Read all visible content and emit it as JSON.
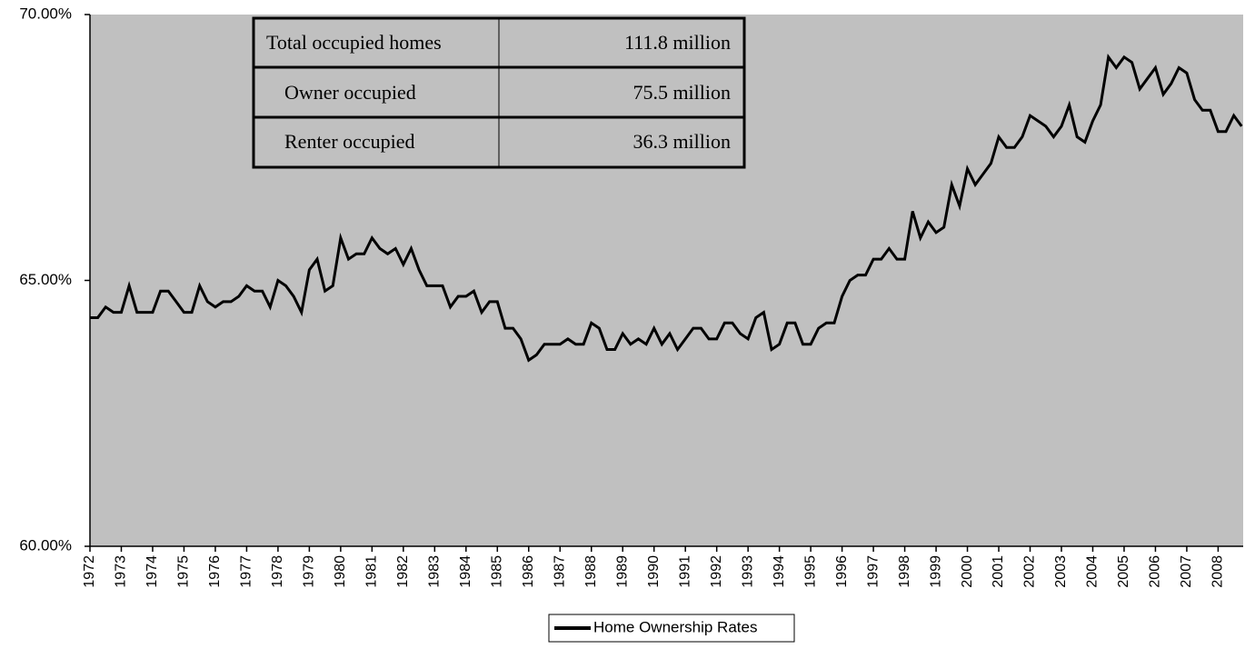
{
  "chart_data": {
    "type": "line",
    "x": [
      1972,
      1972.25,
      1972.5,
      1972.75,
      1973,
      1973.25,
      1973.5,
      1973.75,
      1974,
      1974.25,
      1974.5,
      1974.75,
      1975,
      1975.25,
      1975.5,
      1975.75,
      1976,
      1976.25,
      1976.5,
      1976.75,
      1977,
      1977.25,
      1977.5,
      1977.75,
      1978,
      1978.25,
      1978.5,
      1978.75,
      1979,
      1979.25,
      1979.5,
      1979.75,
      1980,
      1980.25,
      1980.5,
      1980.75,
      1981,
      1981.25,
      1981.5,
      1981.75,
      1982,
      1982.25,
      1982.5,
      1982.75,
      1983,
      1983.25,
      1983.5,
      1983.75,
      1984,
      1984.25,
      1984.5,
      1984.75,
      1985,
      1985.25,
      1985.5,
      1985.75,
      1986,
      1986.25,
      1986.5,
      1986.75,
      1987,
      1987.25,
      1987.5,
      1987.75,
      1988,
      1988.25,
      1988.5,
      1988.75,
      1989,
      1989.25,
      1989.5,
      1989.75,
      1990,
      1990.25,
      1990.5,
      1990.75,
      1991,
      1991.25,
      1991.5,
      1991.75,
      1992,
      1992.25,
      1992.5,
      1992.75,
      1993,
      1993.25,
      1993.5,
      1993.75,
      1994,
      1994.25,
      1994.5,
      1994.75,
      1995,
      1995.25,
      1995.5,
      1995.75,
      1996,
      1996.25,
      1996.5,
      1996.75,
      1997,
      1997.25,
      1997.5,
      1997.75,
      1998,
      1998.25,
      1998.5,
      1998.75,
      1999,
      1999.25,
      1999.5,
      1999.75,
      2000,
      2000.25,
      2000.5,
      2000.75,
      2001,
      2001.25,
      2001.5,
      2001.75,
      2002,
      2002.25,
      2002.5,
      2002.75,
      2003,
      2003.25,
      2003.5,
      2003.75,
      2004,
      2004.25,
      2004.5,
      2004.75,
      2005,
      2005.25,
      2005.5,
      2005.75,
      2006,
      2006.25,
      2006.5,
      2006.75,
      2007,
      2007.25,
      2007.5,
      2007.75,
      2008,
      2008.25,
      2008.5,
      2008.75
    ],
    "series": [
      {
        "name": "Home Ownership Rates",
        "color": "#000000",
        "values": [
          64.3,
          64.3,
          64.5,
          64.4,
          64.4,
          64.9,
          64.4,
          64.4,
          64.4,
          64.8,
          64.8,
          64.6,
          64.4,
          64.4,
          64.9,
          64.6,
          64.5,
          64.6,
          64.6,
          64.7,
          64.9,
          64.8,
          64.8,
          64.5,
          65.0,
          64.9,
          64.7,
          64.4,
          65.2,
          65.4,
          64.8,
          64.9,
          65.8,
          65.4,
          65.5,
          65.5,
          65.8,
          65.6,
          65.5,
          65.6,
          65.3,
          65.6,
          65.2,
          64.9,
          64.9,
          64.9,
          64.5,
          64.7,
          64.7,
          64.8,
          64.4,
          64.6,
          64.6,
          64.1,
          64.1,
          63.9,
          63.5,
          63.6,
          63.8,
          63.8,
          63.8,
          63.9,
          63.8,
          63.8,
          64.2,
          64.1,
          63.7,
          63.7,
          64.0,
          63.8,
          63.9,
          63.8,
          64.1,
          63.8,
          64.0,
          63.7,
          63.9,
          64.1,
          64.1,
          63.9,
          63.9,
          64.2,
          64.2,
          64.0,
          63.9,
          64.3,
          64.4,
          63.7,
          63.8,
          64.2,
          64.2,
          63.8,
          63.8,
          64.1,
          64.2,
          64.2,
          64.7,
          65.0,
          65.1,
          65.1,
          65.4,
          65.4,
          65.6,
          65.4,
          65.4,
          66.3,
          65.8,
          66.1,
          65.9,
          66.0,
          66.8,
          66.4,
          67.1,
          66.8,
          67.0,
          67.2,
          67.7,
          67.5,
          67.5,
          67.7,
          68.1,
          68.0,
          67.9,
          67.7,
          67.9,
          68.3,
          67.7,
          67.6,
          68.0,
          68.3,
          69.2,
          69.0,
          69.2,
          69.1,
          68.6,
          68.8,
          69.0,
          68.5,
          68.7,
          69.0,
          68.9,
          68.4,
          68.2,
          68.2,
          67.8,
          67.8,
          68.1,
          67.9
        ]
      }
    ],
    "xlim": [
      1972,
      2008.8
    ],
    "xticks": [
      1972,
      1973,
      1974,
      1975,
      1976,
      1977,
      1978,
      1979,
      1980,
      1981,
      1982,
      1983,
      1984,
      1985,
      1986,
      1987,
      1988,
      1989,
      1990,
      1991,
      1992,
      1993,
      1994,
      1995,
      1996,
      1997,
      1998,
      1999,
      2000,
      2001,
      2002,
      2003,
      2004,
      2005,
      2006,
      2007,
      2008
    ],
    "ylim": [
      60,
      70
    ],
    "yticks": [
      {
        "value": 60,
        "label": "60.00%"
      },
      {
        "value": 65,
        "label": "65.00%"
      },
      {
        "value": 70,
        "label": "70.00%"
      }
    ],
    "legend": "bottom"
  },
  "table": {
    "rows": [
      [
        "Total occupied homes",
        "111.8 million"
      ],
      [
        "Owner occupied",
        "75.5 million"
      ],
      [
        "Renter occupied",
        "36.3 million"
      ]
    ]
  }
}
